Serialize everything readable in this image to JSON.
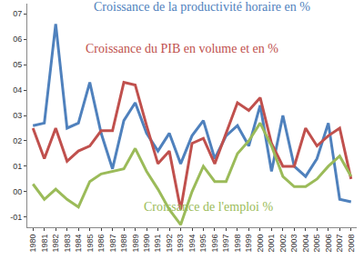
{
  "chart_data": {
    "type": "line",
    "categories": [
      "1980",
      "1981",
      "1982",
      "1983",
      "1984",
      "1985",
      "1986",
      "1987",
      "1988",
      "1989",
      "1990",
      "1991",
      "1992",
      "1993",
      "1994",
      "1995",
      "1996",
      "1997",
      "1998",
      "1999",
      "2000",
      "2001",
      "2002",
      "2003",
      "2004",
      "2005",
      "2006",
      "2007",
      "2008"
    ],
    "series": [
      {
        "name": "Croissance de la productivité horaire en %",
        "color": "#4f81bd",
        "values": [
          2.6,
          2.7,
          6.6,
          2.5,
          2.7,
          4.3,
          2.3,
          0.9,
          2.8,
          3.5,
          2.3,
          1.6,
          2.3,
          1.1,
          2.2,
          2.8,
          1.3,
          2.2,
          2.6,
          1.8,
          3.4,
          0.8,
          3.0,
          1.0,
          0.6,
          1.3,
          2.7,
          -0.3,
          -0.4
        ]
      },
      {
        "name": "Croissance du PIB en volume et en %",
        "color": "#c0504d",
        "values": [
          2.5,
          1.3,
          2.5,
          1.2,
          1.6,
          1.8,
          2.4,
          2.4,
          4.3,
          4.2,
          2.6,
          1.1,
          1.6,
          -0.7,
          1.9,
          2.1,
          1.1,
          2.3,
          3.5,
          3.2,
          3.7,
          1.9,
          1.0,
          1.0,
          2.5,
          1.8,
          2.2,
          2.5,
          0.5
        ]
      },
      {
        "name": "Croissance de l'emploi %",
        "color": "#9bbb59",
        "values": [
          0.3,
          -0.3,
          0.1,
          -0.3,
          -0.6,
          0.4,
          0.7,
          0.8,
          0.9,
          1.7,
          0.8,
          0.1,
          -0.7,
          -1.3,
          0.0,
          1.0,
          0.4,
          0.4,
          1.5,
          2.0,
          2.7,
          1.8,
          0.6,
          0.2,
          0.2,
          0.5,
          1.0,
          1.4,
          0.6
        ]
      }
    ],
    "ylim": [
      -1.4,
      7.4
    ],
    "yticks": [
      {
        "value": -1,
        "label": "-01"
      },
      {
        "value": 0,
        "label": "00"
      },
      {
        "value": 1,
        "label": "01"
      },
      {
        "value": 2,
        "label": "02"
      },
      {
        "value": 3,
        "label": "03"
      },
      {
        "value": 4,
        "label": "04"
      },
      {
        "value": 5,
        "label": "05"
      },
      {
        "value": 6,
        "label": "06"
      },
      {
        "value": 7,
        "label": "07"
      }
    ],
    "grid": false
  }
}
